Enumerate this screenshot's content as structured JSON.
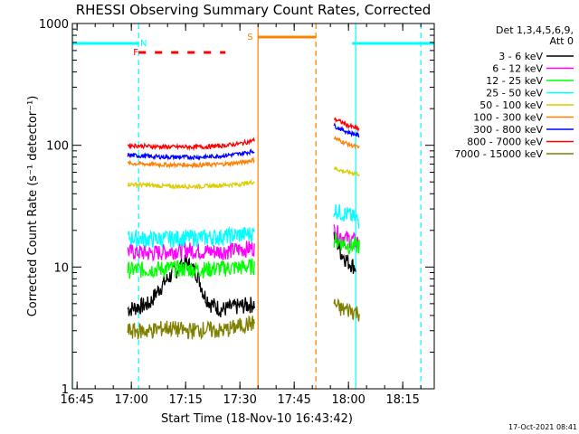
{
  "chart_data": {
    "type": "line",
    "title": "RHESSI Observing Summary Count Rates, Corrected",
    "xlabel": "Start Time (18-Nov-10 16:43:42)",
    "ylabel": "Corrected Count Rate (s⁻¹ detector⁻¹)",
    "yscale": "log",
    "ylim": [
      1,
      1000
    ],
    "xlim": [
      "16:43:42",
      "18:23:42"
    ],
    "x_ticks": [
      "16:45",
      "17:00",
      "17:15",
      "17:30",
      "17:45",
      "18:00",
      "18:15"
    ],
    "y_ticks": [
      "1",
      "10",
      "100",
      "1000"
    ],
    "legend_header": [
      "Det 1,3,4,5,6,9,",
      "Att 0"
    ],
    "legend_position": "right",
    "series": [
      {
        "name": "3 - 6 keV",
        "color": "#000000",
        "segments": [
          {
            "x": [
              "16:59",
              "17:05",
              "17:10",
              "17:15",
              "17:18",
              "17:20",
              "17:22",
              "17:25",
              "17:30",
              "17:34"
            ],
            "y": [
              4.5,
              5.0,
              8.0,
              11.0,
              9.0,
              6.0,
              5.0,
              4.5,
              4.8,
              5.0
            ]
          },
          {
            "x": [
              "17:56",
              "17:58",
              "18:00",
              "18:02"
            ],
            "y": [
              18,
              13,
              11,
              10
            ]
          }
        ]
      },
      {
        "name": "6 - 12 keV",
        "color": "#ff00ff",
        "segments": [
          {
            "x": [
              "16:59",
              "17:05",
              "17:10",
              "17:15",
              "17:20",
              "17:25",
              "17:30",
              "17:34"
            ],
            "y": [
              13.5,
              13.0,
              13.5,
              14.0,
              13.5,
              13.5,
              14.0,
              14.5
            ]
          },
          {
            "x": [
              "17:56",
              "17:58",
              "18:00",
              "18:03"
            ],
            "y": [
              20,
              18,
              17,
              16
            ]
          }
        ]
      },
      {
        "name": "12 - 25 keV",
        "color": "#00ff00",
        "segments": [
          {
            "x": [
              "16:59",
              "17:05",
              "17:10",
              "17:15",
              "17:20",
              "17:25",
              "17:30",
              "17:34"
            ],
            "y": [
              9.5,
              9.6,
              9.8,
              9.7,
              9.6,
              9.8,
              10.0,
              10.2
            ]
          },
          {
            "x": [
              "17:56",
              "17:58",
              "18:00",
              "18:03"
            ],
            "y": [
              17,
              16,
              15,
              15
            ]
          }
        ]
      },
      {
        "name": "25 - 50 keV",
        "color": "#00ffff",
        "segments": [
          {
            "x": [
              "16:59",
              "17:05",
              "17:10",
              "17:15",
              "17:20",
              "17:25",
              "17:30",
              "17:34"
            ],
            "y": [
              17.5,
              17.0,
              17.2,
              17.5,
              17.5,
              17.8,
              18.5,
              19.0
            ]
          },
          {
            "x": [
              "17:56",
              "17:58",
              "18:00",
              "18:03"
            ],
            "y": [
              30,
              28,
              27,
              24
            ]
          }
        ]
      },
      {
        "name": "50 - 100 keV",
        "color": "#dccc00",
        "segments": [
          {
            "x": [
              "16:59",
              "17:05",
              "17:10",
              "17:15",
              "17:20",
              "17:25",
              "17:30",
              "17:34"
            ],
            "y": [
              48,
              47,
              46,
              46,
              46,
              47,
              48,
              50
            ]
          },
          {
            "x": [
              "17:56",
              "17:58",
              "18:00",
              "18:03"
            ],
            "y": [
              65,
              62,
              60,
              58
            ]
          }
        ]
      },
      {
        "name": "100 - 300 keV",
        "color": "#ff8000",
        "segments": [
          {
            "x": [
              "16:59",
              "17:05",
              "17:10",
              "17:15",
              "17:20",
              "17:25",
              "17:30",
              "17:34"
            ],
            "y": [
              71,
              70,
              69,
              69,
              69,
              70,
              72,
              76
            ]
          },
          {
            "x": [
              "17:56",
              "17:58",
              "18:00",
              "18:03"
            ],
            "y": [
              115,
              108,
              102,
              95
            ]
          }
        ]
      },
      {
        "name": "300 - 800 keV",
        "color": "#0000ff",
        "segments": [
          {
            "x": [
              "16:59",
              "17:05",
              "17:10",
              "17:15",
              "17:20",
              "17:25",
              "17:30",
              "17:34"
            ],
            "y": [
              83,
              81,
              80,
              80,
              80,
              82,
              85,
              90
            ]
          },
          {
            "x": [
              "17:56",
              "17:58",
              "18:00",
              "18:03"
            ],
            "y": [
              145,
              135,
              128,
              120
            ]
          }
        ]
      },
      {
        "name": "800 - 7000 keV",
        "color": "#ff0000",
        "segments": [
          {
            "x": [
              "16:59",
              "17:05",
              "17:10",
              "17:15",
              "17:20",
              "17:25",
              "17:30",
              "17:34"
            ],
            "y": [
              100,
              98,
              97,
              97,
              97,
              99,
              103,
              110
            ]
          },
          {
            "x": [
              "17:56",
              "17:58",
              "18:00",
              "18:03"
            ],
            "y": [
              165,
              155,
              145,
              135
            ]
          }
        ]
      },
      {
        "name": "7000 - 15000 keV",
        "color": "#808000",
        "segments": [
          {
            "x": [
              "16:59",
              "17:05",
              "17:10",
              "17:15",
              "17:20",
              "17:25",
              "17:30",
              "17:34"
            ],
            "y": [
              3.0,
              3.0,
              3.2,
              3.0,
              3.1,
              3.0,
              3.3,
              3.5
            ]
          },
          {
            "x": [
              "17:56",
              "17:58",
              "18:00",
              "18:03"
            ],
            "y": [
              5.0,
              4.5,
              4.5,
              4.2
            ]
          }
        ]
      }
    ],
    "flags": [
      {
        "label": "N",
        "color": "#00ffff",
        "position": "top",
        "segments": [
          [
            "16:43:42",
            "17:02"
          ],
          [
            "18:01",
            "18:23:42"
          ]
        ]
      },
      {
        "label": "F",
        "color": "#ff0000",
        "position": "top-lower",
        "style": "dashed",
        "segments": [
          [
            "17:02",
            "17:26"
          ]
        ]
      },
      {
        "label": "S",
        "color": "#ff8000",
        "position": "top-high",
        "segments": [
          [
            "17:35",
            "17:51"
          ]
        ]
      }
    ],
    "vertical_markers": [
      {
        "x": "16:43:42",
        "color": "#00ffff",
        "style": "solid"
      },
      {
        "x": "17:02",
        "color": "#00ffff",
        "style": "dashed"
      },
      {
        "x": "17:35",
        "color": "#ff8000",
        "style": "solid"
      },
      {
        "x": "17:51",
        "color": "#ff8000",
        "style": "dashed"
      },
      {
        "x": "18:02",
        "color": "#00ffff",
        "style": "solid"
      },
      {
        "x": "18:20",
        "color": "#00ffff",
        "style": "dashed"
      }
    ]
  },
  "footer": {
    "timestamp": "17-Oct-2021 08:41"
  }
}
